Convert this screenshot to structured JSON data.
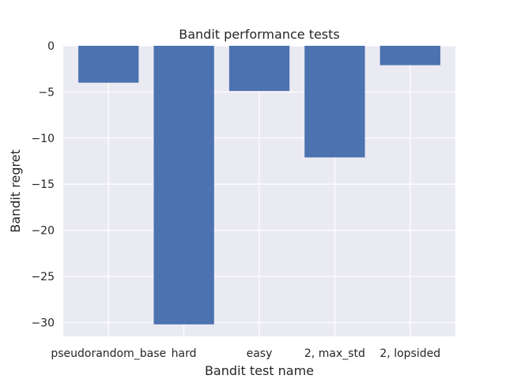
{
  "chart_data": {
    "type": "bar",
    "title": "Bandit performance tests",
    "xlabel": "Bandit test name",
    "ylabel": "Bandit regret",
    "categories": [
      "pseudorandom_base",
      "hard",
      "easy",
      "2, max_std",
      "2, lopsided"
    ],
    "values": [
      -4.0,
      -30.2,
      -4.9,
      -12.1,
      -2.1
    ],
    "ylim": [
      -31.5,
      0
    ],
    "yticks": [
      0,
      -5,
      -10,
      -15,
      -20,
      -25,
      -30
    ],
    "ytick_labels": [
      "0",
      "−5",
      "−10",
      "−15",
      "−20",
      "−25",
      "−30"
    ],
    "grid": true,
    "bar_color": "#4c72b0",
    "background_color": "#eaeaf2",
    "grid_color": "#ffffff"
  }
}
